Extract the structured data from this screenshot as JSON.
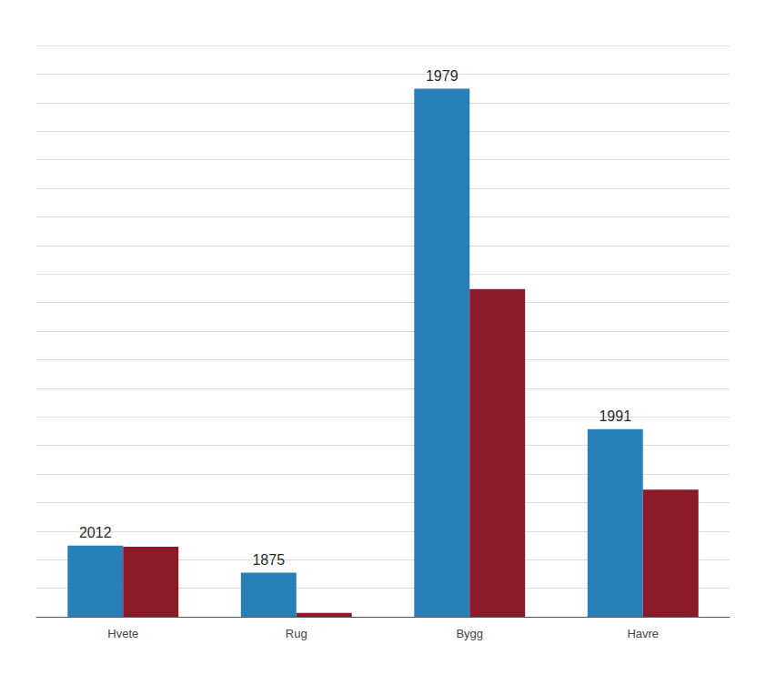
{
  "chart_data": {
    "type": "bar",
    "categories": [
      "Hvete",
      "Rug",
      "Bygg",
      "Havre"
    ],
    "series": [
      {
        "color": "#2980B9",
        "values": [
          330,
          205,
          2450,
          870
        ]
      },
      {
        "color": "#8B1A2A",
        "values": [
          325,
          18,
          1520,
          590
        ]
      }
    ],
    "annotations": [
      "2012",
      "1875",
      "1979",
      "1991"
    ],
    "ylim": [
      0,
      2650
    ],
    "yticks": [
      0,
      132.5,
      265,
      397.5,
      530,
      662.5,
      795,
      927.5,
      1060,
      1192.5,
      1325,
      1457.5,
      1590,
      1722.5,
      1855,
      1987.5,
      2120,
      2252.5,
      2385,
      2517.5,
      2650
    ],
    "grid": true,
    "tick_labels": "x"
  }
}
